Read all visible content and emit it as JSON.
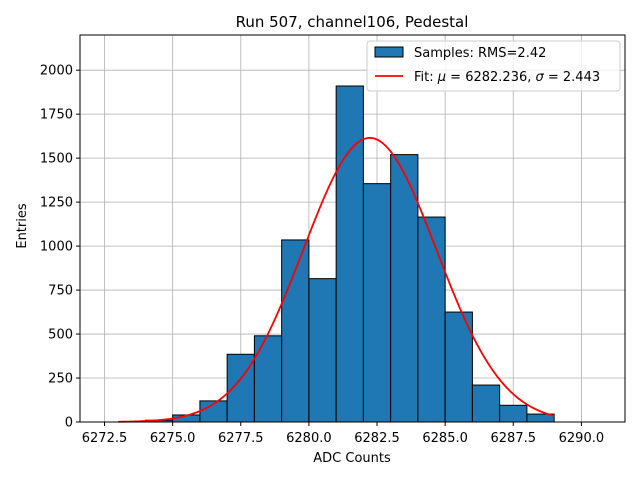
{
  "chart_data": {
    "type": "bar",
    "title": "Run 507, channel106, Pedestal",
    "xlabel": "ADC Counts",
    "ylabel": "Entries",
    "xlim": [
      6271.6,
      6291.6
    ],
    "ylim": [
      0,
      2200
    ],
    "grid": true,
    "xticks": [
      6272.5,
      6275.0,
      6277.5,
      6280.0,
      6282.5,
      6285.0,
      6287.5,
      6290.0
    ],
    "xtick_labels": [
      "6272.5",
      "6275.0",
      "6277.5",
      "6280.0",
      "6282.5",
      "6285.0",
      "6287.5",
      "6290.0"
    ],
    "yticks": [
      0,
      250,
      500,
      750,
      1000,
      1250,
      1500,
      1750,
      2000
    ],
    "ytick_labels": [
      "0",
      "250",
      "500",
      "750",
      "1000",
      "1250",
      "1500",
      "1750",
      "2000"
    ],
    "histogram": {
      "name": "Samples: RMS=2.42",
      "color": "#1f77b4",
      "edge_color": "#000000",
      "bin_edges": [
        6274.0,
        6275.0,
        6276.0,
        6277.0,
        6278.0,
        6279.0,
        6280.0,
        6281.0,
        6282.0,
        6283.0,
        6284.0,
        6285.0,
        6286.0,
        6287.0,
        6288.0,
        6289.0
      ],
      "values": [
        10,
        40,
        120,
        385,
        490,
        1035,
        815,
        1910,
        1355,
        1520,
        1165,
        625,
        210,
        95,
        45
      ]
    },
    "fit": {
      "name": "Fit: μ = 6282.236, σ = 2.443",
      "color": "#ff0000",
      "mu": 6282.236,
      "sigma": 2.443,
      "amplitude": 1615,
      "x_range": [
        6273.0,
        6289.0
      ]
    },
    "legend": {
      "position": "top-right",
      "entries": [
        {
          "label": "Samples: RMS=2.42",
          "kind": "patch"
        },
        {
          "label_prefix": "Fit: ",
          "mu_symbol": "μ",
          "mu_text": " = 6282.236, ",
          "sigma_symbol": "σ",
          "sigma_text": " = 2.443",
          "kind": "line"
        }
      ]
    }
  }
}
